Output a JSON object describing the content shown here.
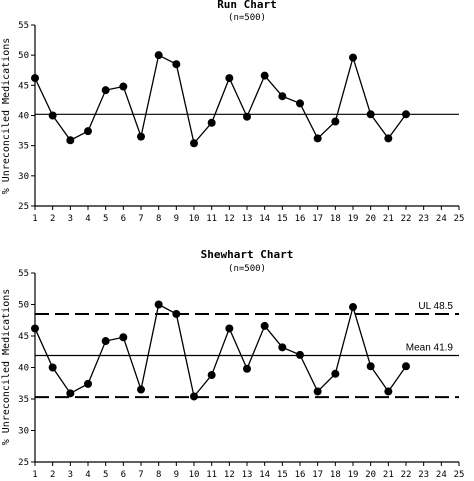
{
  "chart_data": [
    {
      "type": "line",
      "title": "Run Chart",
      "subtitle": "(n=500)",
      "ylabel": "% Unreconciled Medications",
      "xlabel": "",
      "xlim": [
        1,
        25
      ],
      "ylim": [
        25,
        55
      ],
      "x_ticks": [
        1,
        2,
        3,
        4,
        5,
        6,
        7,
        8,
        9,
        10,
        11,
        12,
        13,
        14,
        15,
        16,
        17,
        18,
        19,
        20,
        21,
        22,
        23,
        24,
        25
      ],
      "y_ticks": [
        25,
        30,
        35,
        40,
        45,
        50,
        55
      ],
      "grid": false,
      "series": [
        {
          "x": [
            1,
            2,
            3,
            4,
            5,
            6,
            7,
            8,
            9,
            10,
            11,
            12,
            13,
            14,
            15,
            16,
            17,
            18,
            19,
            20,
            21,
            22
          ],
          "values": [
            46.2,
            40.0,
            35.9,
            37.4,
            44.2,
            44.8,
            36.5,
            50.0,
            48.5,
            35.4,
            38.8,
            46.2,
            39.8,
            46.6,
            43.2,
            42.0,
            36.2,
            39.0,
            49.6,
            40.2,
            36.2,
            40.2
          ]
        }
      ],
      "reference_lines": [
        {
          "value": 40.2,
          "style": "solid",
          "label": ""
        }
      ]
    },
    {
      "type": "line",
      "title": "Shewhart Chart",
      "subtitle": "(n=500)",
      "ylabel": "% Unreconciled Medications",
      "xlabel": "",
      "xlim": [
        1,
        25
      ],
      "ylim": [
        25,
        55
      ],
      "x_ticks": [
        1,
        2,
        3,
        4,
        5,
        6,
        7,
        8,
        9,
        10,
        11,
        12,
        13,
        14,
        15,
        16,
        17,
        18,
        19,
        20,
        21,
        22,
        23,
        24,
        25
      ],
      "y_ticks": [
        25,
        30,
        35,
        40,
        45,
        50,
        55
      ],
      "grid": false,
      "series": [
        {
          "x": [
            1,
            2,
            3,
            4,
            5,
            6,
            7,
            8,
            9,
            10,
            11,
            12,
            13,
            14,
            15,
            16,
            17,
            18,
            19,
            20,
            21,
            22
          ],
          "values": [
            46.2,
            40.0,
            35.9,
            37.4,
            44.2,
            44.8,
            36.5,
            50.0,
            48.5,
            35.4,
            38.8,
            46.2,
            39.8,
            46.6,
            43.2,
            42.0,
            36.2,
            39.0,
            49.6,
            40.2,
            36.2,
            40.2
          ]
        }
      ],
      "reference_lines": [
        {
          "value": 48.5,
          "style": "dashed",
          "label": "UL 48.5"
        },
        {
          "value": 41.9,
          "style": "solid",
          "label": "Mean 41.9"
        },
        {
          "value": 35.3,
          "style": "dashed",
          "label": ""
        }
      ]
    }
  ]
}
